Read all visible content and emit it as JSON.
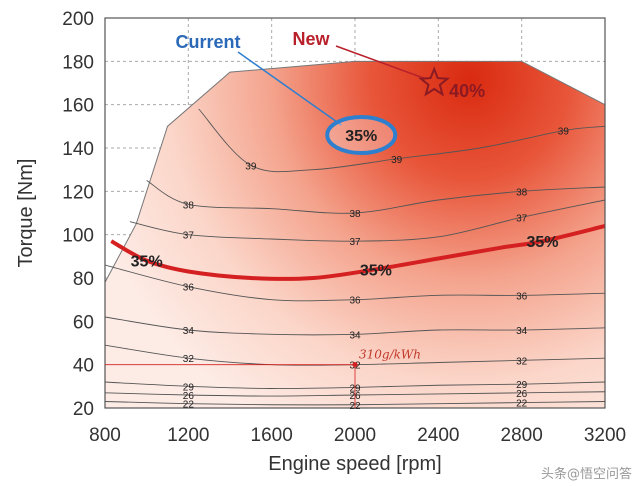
{
  "chart_data": {
    "type": "contour",
    "xlabel": "Engine speed [rpm]",
    "ylabel": "Torque [Nm]",
    "xlim": [
      800,
      3200
    ],
    "ylim": [
      20,
      200
    ],
    "x_ticks": [
      "800",
      "1200",
      "1600",
      "2000",
      "2400",
      "2800",
      "3200"
    ],
    "y_ticks": [
      "20",
      "40",
      "60",
      "80",
      "100",
      "120",
      "140",
      "160",
      "180",
      "200"
    ],
    "grid": true,
    "max_torque_curve": [
      [
        800,
        78
      ],
      [
        950,
        105
      ],
      [
        1100,
        150
      ],
      [
        1400,
        175
      ],
      [
        2000,
        180
      ],
      [
        2800,
        180
      ],
      [
        3200,
        160
      ]
    ],
    "efficiency_contours": [
      {
        "label": "22",
        "points": [
          [
            800,
            23
          ],
          [
            1200,
            22
          ],
          [
            1600,
            21.5
          ],
          [
            2000,
            21.5
          ],
          [
            2400,
            22
          ],
          [
            2800,
            22.5
          ],
          [
            3200,
            23
          ]
        ]
      },
      {
        "label": "26",
        "points": [
          [
            800,
            27
          ],
          [
            1200,
            26
          ],
          [
            1600,
            25.5
          ],
          [
            2000,
            26
          ],
          [
            2400,
            26.5
          ],
          [
            2800,
            27
          ],
          [
            3200,
            27.5
          ]
        ]
      },
      {
        "label": "29",
        "points": [
          [
            800,
            32
          ],
          [
            1200,
            30
          ],
          [
            1600,
            29
          ],
          [
            2000,
            29.5
          ],
          [
            2400,
            30.5
          ],
          [
            2800,
            31
          ],
          [
            3200,
            32
          ]
        ]
      },
      {
        "label": "32",
        "points": [
          [
            800,
            49
          ],
          [
            1200,
            43
          ],
          [
            1600,
            40
          ],
          [
            2000,
            40
          ],
          [
            2400,
            41
          ],
          [
            2800,
            42
          ],
          [
            3200,
            43
          ]
        ]
      },
      {
        "label": "34",
        "points": [
          [
            800,
            62
          ],
          [
            1200,
            56
          ],
          [
            1600,
            54
          ],
          [
            2000,
            54
          ],
          [
            2400,
            56
          ],
          [
            2800,
            56
          ],
          [
            3200,
            57
          ]
        ]
      },
      {
        "label": "36",
        "points": [
          [
            800,
            86
          ],
          [
            1200,
            76
          ],
          [
            1600,
            70
          ],
          [
            2000,
            70
          ],
          [
            2400,
            72
          ],
          [
            2800,
            72
          ],
          [
            3200,
            73
          ]
        ]
      },
      {
        "label": "37",
        "points": [
          [
            920,
            106
          ],
          [
            1200,
            100
          ],
          [
            1600,
            98
          ],
          [
            2000,
            97
          ],
          [
            2400,
            99
          ],
          [
            2800,
            108
          ],
          [
            3200,
            116
          ]
        ]
      },
      {
        "label": "38",
        "points": [
          [
            1000,
            125
          ],
          [
            1200,
            114
          ],
          [
            1600,
            112
          ],
          [
            2000,
            110
          ],
          [
            2400,
            116
          ],
          [
            2800,
            120
          ],
          [
            3200,
            122
          ]
        ]
      },
      {
        "label": "39",
        "points": [
          [
            1250,
            158
          ],
          [
            1500,
            132
          ],
          [
            1800,
            130
          ],
          [
            2200,
            135
          ],
          [
            2600,
            140
          ],
          [
            3000,
            148
          ],
          [
            3200,
            150
          ]
        ]
      }
    ],
    "highlight_curve": {
      "label": "35%",
      "color": "#d42020",
      "points": [
        [
          830,
          97
        ],
        [
          1000,
          88
        ],
        [
          1200,
          83
        ],
        [
          1500,
          80
        ],
        [
          1800,
          80
        ],
        [
          2100,
          84
        ],
        [
          2400,
          89
        ],
        [
          2700,
          94
        ],
        [
          2900,
          97
        ],
        [
          3200,
          104
        ]
      ]
    },
    "annotations": [
      {
        "text": "Current",
        "value": "35%",
        "x": 2030,
        "y": 146
      },
      {
        "text": "New",
        "value": "40%",
        "x": 2380,
        "y": 170
      },
      {
        "text": "310g/kWh",
        "x": 2000,
        "y": 40
      }
    ]
  },
  "watermark": "头条@悟空问答",
  "colors": {
    "peak": "#d92a10",
    "mid": "#ef8b70",
    "low": "#fce4dc",
    "current_outline": "#2f7fcf",
    "current_text": "#2a68b8",
    "new_text": "#b8202a",
    "highlight": "#d42020",
    "grid": "#aaaaaa"
  }
}
